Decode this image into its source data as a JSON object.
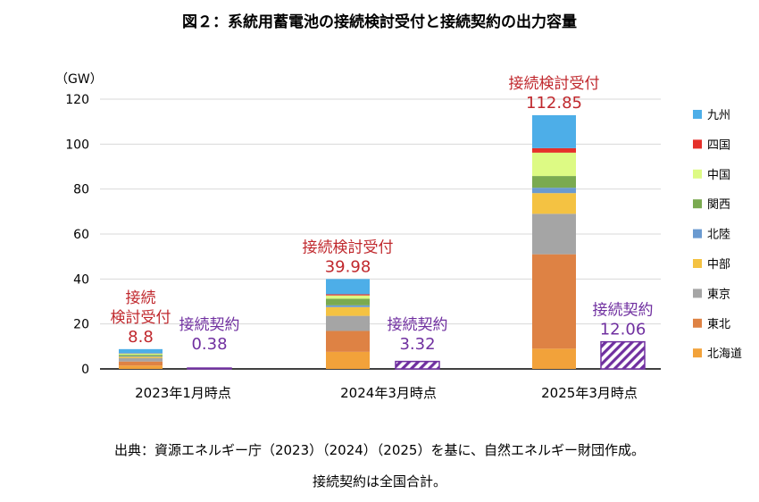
{
  "title": "図２：系統用蓄電池の接続検討受付と接続契約の出力容量",
  "notes": [
    "出典：資源エネルギー庁（2023）（2024）（2025）を基に、自然エネルギー財団作成。",
    "接続契約は全国合計。"
  ],
  "chart_data": {
    "type": "bar",
    "stacked": true,
    "ylabel": "（GW）",
    "ylim": [
      0,
      120
    ],
    "yticks": [
      0,
      20,
      40,
      60,
      80,
      100,
      120
    ],
    "grid": true,
    "legend_position": "right",
    "categories": [
      "2023年1月時点",
      "2024年3月時点",
      "2025年3月時点"
    ],
    "series": [
      {
        "name": "北海道",
        "color": "#F2A23A",
        "values": [
          1.5,
          7.6,
          9.0
        ]
      },
      {
        "name": "東北",
        "color": "#DE8244",
        "values": [
          1.8,
          9.3,
          42.0
        ]
      },
      {
        "name": "東京",
        "color": "#A5A5A5",
        "values": [
          1.5,
          6.7,
          18.0
        ]
      },
      {
        "name": "中部",
        "color": "#F4C242",
        "values": [
          0.6,
          3.9,
          9.2
        ]
      },
      {
        "name": "北陸",
        "color": "#6A9AD0",
        "values": [
          0.3,
          0.8,
          2.4
        ]
      },
      {
        "name": "関西",
        "color": "#7AAA50",
        "values": [
          0.6,
          2.9,
          5.2
        ]
      },
      {
        "name": "中国",
        "color": "#DDFA84",
        "values": [
          0.5,
          1.5,
          10.4
        ]
      },
      {
        "name": "四国",
        "color": "#E5302A",
        "values": [
          0.1,
          0.5,
          2.0
        ]
      },
      {
        "name": "九州",
        "color": "#4DAEE8",
        "values": [
          1.9,
          6.78,
          14.65
        ]
      }
    ],
    "review": {
      "label_lines": [
        [
          "接続",
          "検討受付"
        ],
        [
          "接続検討受付"
        ],
        [
          "接続検討受付"
        ]
      ],
      "totals": [
        "8.8",
        "39.98",
        " 112.85"
      ],
      "totals_values": [
        8.8,
        39.98,
        112.85
      ],
      "color": "#C0282D"
    },
    "contract": {
      "label": "接続契約",
      "totals": [
        "0.38",
        "3.32",
        "12.06"
      ],
      "values": [
        0.38,
        3.32,
        12.06
      ],
      "color": "#7030A0"
    }
  }
}
